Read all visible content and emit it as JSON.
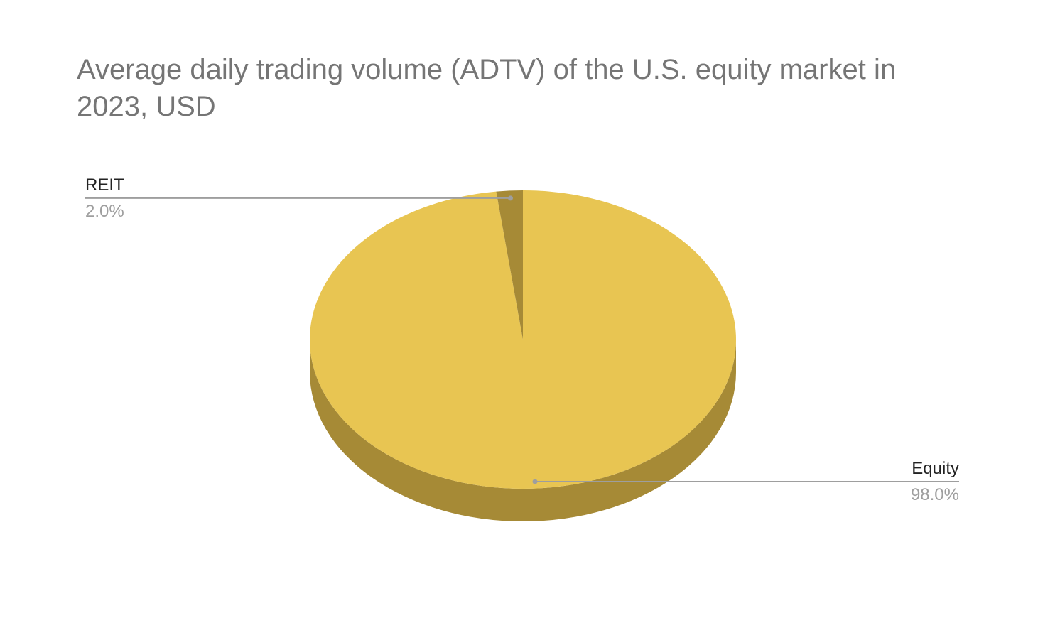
{
  "chart_data": {
    "type": "pie",
    "title": "Average daily trading volume (ADTV) of the U.S. equity market in 2023, USD",
    "three_d": true,
    "start_angle": "12 o'clock, clockwise",
    "slices": [
      {
        "label": "REIT",
        "value": 2.0,
        "percent_label": "2.0%",
        "color": "#E8C552",
        "shade_color": "#A68A36"
      },
      {
        "label": "Equity",
        "value": 98.0,
        "percent_label": "98.0%",
        "color": "#E8C552",
        "shade_color": "#A68A36"
      }
    ],
    "label_style": {
      "name_color": "#222222",
      "percent_color": "#9E9E9E",
      "leader_color": "#9E9E9E"
    }
  }
}
